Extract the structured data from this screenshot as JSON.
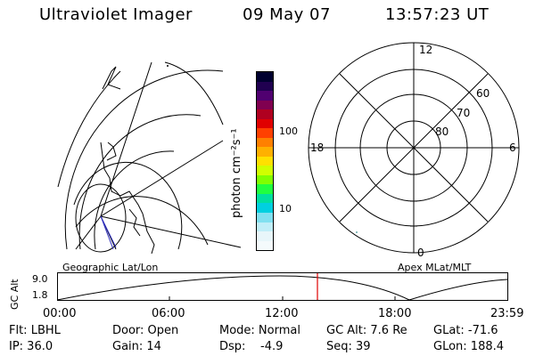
{
  "header": {
    "instrument": "Ultraviolet Imager",
    "date": "09 May 07",
    "time": "13:57:23 UT"
  },
  "colorbar": {
    "label": "photon cm⁻²s⁻¹",
    "ticks": [
      "100",
      "10"
    ],
    "colors": [
      "#000030",
      "#200050",
      "#500070",
      "#800050",
      "#b00020",
      "#e00000",
      "#ff4000",
      "#ff8000",
      "#ffb000",
      "#ffe000",
      "#d0ff00",
      "#80ff00",
      "#20ff40",
      "#00e0a0",
      "#00d0e0",
      "#80e0f0",
      "#c0eef8",
      "#e8f6fa",
      "#f4fafc"
    ]
  },
  "geo_panel": {
    "label": "Geographic Lat/Lon"
  },
  "polar_panel": {
    "label": "Apex MLat/MLT",
    "mlt_labels": {
      "top": "12",
      "left": "18",
      "right": "6",
      "bottom": "0"
    },
    "lat_labels": [
      "60",
      "70",
      "80"
    ]
  },
  "timeline": {
    "ylabel": "GC Alt",
    "y_ticks": [
      "9.0",
      "1.8"
    ],
    "x_ticks": [
      "00:00",
      "06:00",
      "12:00",
      "18:00",
      "23:59"
    ],
    "current_time_color": "#e00000"
  },
  "status": {
    "flt": "Flt: LBHL",
    "ip": "IP: 36.0",
    "door": "Door: Open",
    "gain": "Gain: 14",
    "mode": "Mode: Normal",
    "dsp_label": "Dsp:",
    "dsp_value": "-4.9",
    "gc_alt": "GC Alt: 7.6 Re",
    "seq": "Seq: 39",
    "glat": "GLat: -71.6",
    "glon": "GLon: 188.4"
  }
}
